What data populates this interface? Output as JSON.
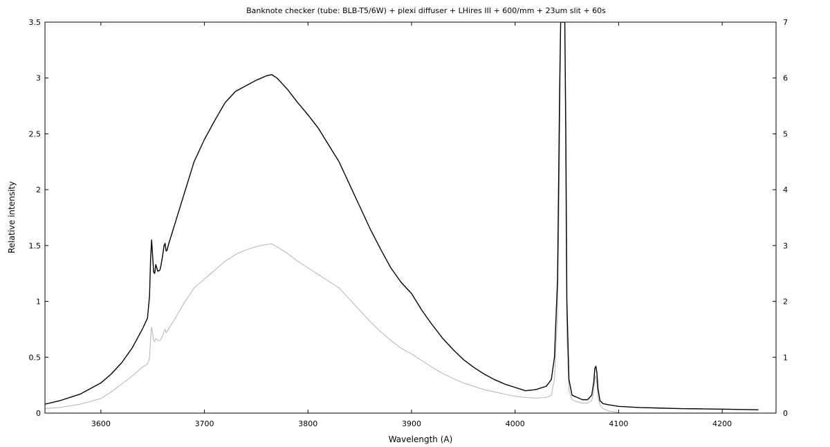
{
  "chart_data": {
    "type": "line",
    "title": "Banknote checker (tube: BLB-T5/6W) + plexi diffuser + LHires III + 600/mm + 23um slit + 60s",
    "xlabel": "Wavelength (A)",
    "ylabel": "Relative intensity",
    "xlim": [
      3546,
      4252
    ],
    "ylim": [
      0,
      3.5
    ],
    "y2lim": [
      0,
      7
    ],
    "x_ticks": [
      3600,
      3700,
      3800,
      3900,
      4000,
      4100,
      4200
    ],
    "y_ticks": [
      0,
      0.5,
      1,
      1.5,
      2,
      2.5,
      3,
      3.5
    ],
    "y2_ticks": [
      0,
      1,
      2,
      3,
      4,
      5,
      6,
      7
    ],
    "grid": false,
    "legend": "none",
    "series": [
      {
        "axis": "left",
        "color": "#000000",
        "x": [
          3546,
          3560,
          3580,
          3600,
          3610,
          3620,
          3630,
          3640,
          3645,
          3647,
          3648,
          3649,
          3650,
          3651,
          3652,
          3653,
          3655,
          3657,
          3658,
          3660,
          3661,
          3662,
          3663,
          3664,
          3665,
          3670,
          3680,
          3690,
          3700,
          3710,
          3720,
          3730,
          3740,
          3750,
          3760,
          3765,
          3770,
          3780,
          3790,
          3800,
          3810,
          3820,
          3830,
          3840,
          3850,
          3860,
          3870,
          3880,
          3890,
          3900,
          3910,
          3920,
          3930,
          3940,
          3950,
          3960,
          3970,
          3980,
          3990,
          4000,
          4010,
          4020,
          4030,
          4035,
          4038,
          4041,
          4043,
          4044,
          4045,
          4048,
          4049,
          4050,
          4052,
          4055,
          4060,
          4065,
          4070,
          4074,
          4076,
          4077,
          4078,
          4079,
          4080,
          4082,
          4085,
          4090,
          4100,
          4120,
          4140,
          4160,
          4180,
          4200,
          4220,
          4235
        ],
        "values": [
          0.08,
          0.11,
          0.17,
          0.27,
          0.35,
          0.45,
          0.58,
          0.75,
          0.85,
          1.05,
          1.38,
          1.55,
          1.4,
          1.26,
          1.25,
          1.33,
          1.27,
          1.28,
          1.32,
          1.43,
          1.5,
          1.52,
          1.45,
          1.46,
          1.5,
          1.65,
          1.95,
          2.25,
          2.45,
          2.62,
          2.78,
          2.88,
          2.93,
          2.98,
          3.02,
          3.03,
          3.0,
          2.9,
          2.78,
          2.67,
          2.55,
          2.4,
          2.25,
          2.05,
          1.85,
          1.65,
          1.47,
          1.3,
          1.17,
          1.07,
          0.92,
          0.79,
          0.67,
          0.57,
          0.48,
          0.41,
          0.35,
          0.3,
          0.26,
          0.23,
          0.2,
          0.21,
          0.24,
          0.3,
          0.5,
          1.2,
          2.9,
          3.5,
          3.5,
          3.5,
          2.5,
          1.0,
          0.3,
          0.16,
          0.14,
          0.12,
          0.12,
          0.16,
          0.28,
          0.4,
          0.42,
          0.36,
          0.22,
          0.11,
          0.085,
          0.075,
          0.06,
          0.05,
          0.045,
          0.04,
          0.038,
          0.035,
          0.032,
          0.03
        ]
      },
      {
        "axis": "right",
        "color": "#b4b4b4",
        "x": [
          3546,
          3560,
          3580,
          3600,
          3610,
          3620,
          3630,
          3640,
          3645,
          3647,
          3648,
          3649,
          3650,
          3651,
          3652,
          3653,
          3655,
          3657,
          3658,
          3660,
          3661,
          3662,
          3663,
          3664,
          3665,
          3670,
          3680,
          3690,
          3700,
          3710,
          3720,
          3730,
          3740,
          3750,
          3760,
          3765,
          3770,
          3780,
          3790,
          3800,
          3810,
          3820,
          3830,
          3840,
          3850,
          3860,
          3870,
          3880,
          3890,
          3900,
          3910,
          3920,
          3930,
          3940,
          3950,
          3960,
          3970,
          3980,
          3990,
          4000,
          4010,
          4020,
          4030,
          4035,
          4038,
          4041,
          4043,
          4044,
          4045,
          4048,
          4049,
          4050,
          4052,
          4055,
          4060,
          4065,
          4070,
          4074,
          4076,
          4077,
          4078,
          4079,
          4080,
          4082,
          4085,
          4090,
          4100
        ],
        "values": [
          0.08,
          0.1,
          0.16,
          0.26,
          0.38,
          0.52,
          0.66,
          0.82,
          0.88,
          0.98,
          1.34,
          1.54,
          1.42,
          1.3,
          1.28,
          1.34,
          1.3,
          1.3,
          1.32,
          1.4,
          1.46,
          1.5,
          1.44,
          1.46,
          1.5,
          1.64,
          1.96,
          2.24,
          2.4,
          2.56,
          2.72,
          2.84,
          2.92,
          2.98,
          3.02,
          3.03,
          2.98,
          2.86,
          2.72,
          2.6,
          2.48,
          2.36,
          2.24,
          2.04,
          1.84,
          1.64,
          1.46,
          1.3,
          1.16,
          1.06,
          0.94,
          0.82,
          0.71,
          0.62,
          0.54,
          0.48,
          0.42,
          0.38,
          0.34,
          0.3,
          0.28,
          0.27,
          0.28,
          0.32,
          0.6,
          1.8,
          4.5,
          7,
          7,
          7,
          3.8,
          1.4,
          0.4,
          0.24,
          0.2,
          0.18,
          0.18,
          0.22,
          0.4,
          0.62,
          0.66,
          0.54,
          0.3,
          0.14,
          0.08,
          0.04,
          0.01
        ]
      }
    ]
  }
}
